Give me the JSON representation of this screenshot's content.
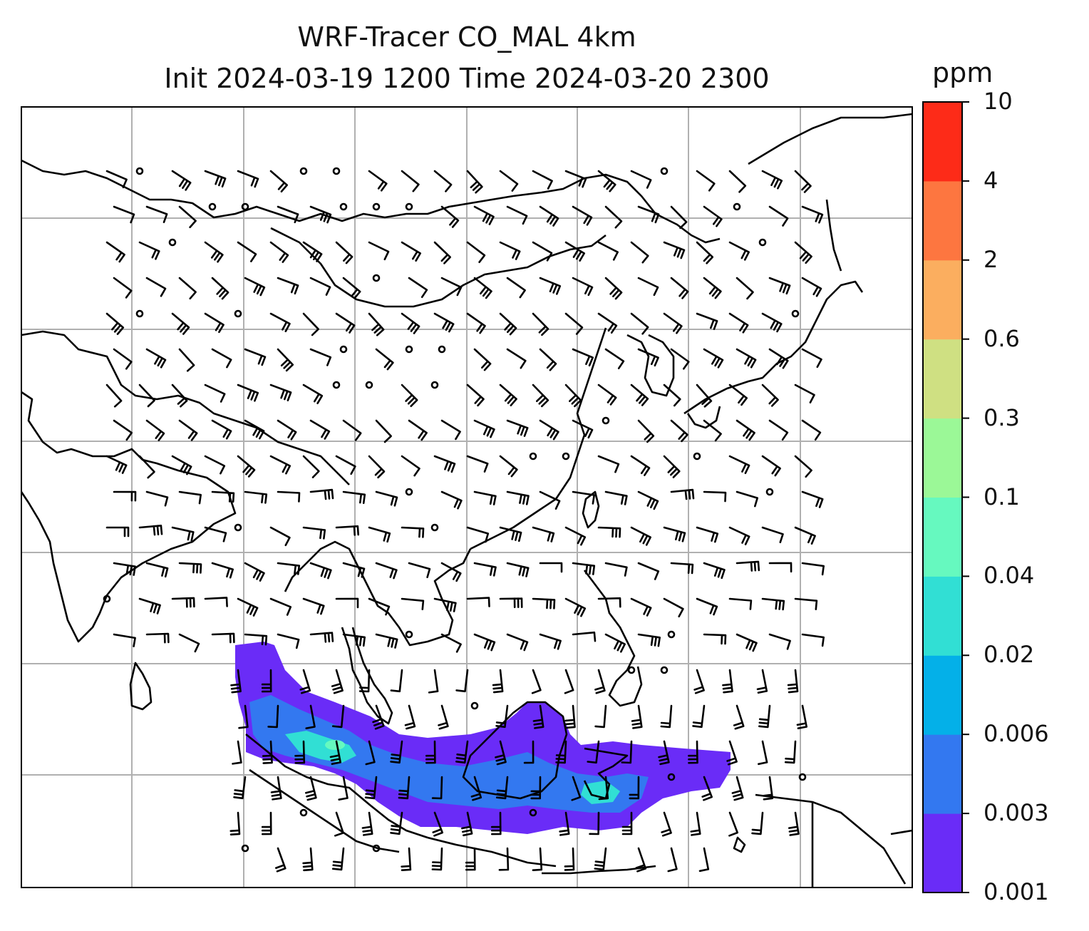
{
  "title": {
    "line1": "WRF-Tracer CO_MAL 4km",
    "line2": "Init 2024-03-19 1200 Time 2024-03-20 2300"
  },
  "colorbar": {
    "unit": "ppm",
    "levels": [
      "0.001",
      "0.003",
      "0.006",
      "0.02",
      "0.04",
      "0.1",
      "0.3",
      "0.6",
      "2",
      "4",
      "10"
    ],
    "colors": [
      "#6a2cf7",
      "#3378f0",
      "#04b0e8",
      "#31dfd4",
      "#66f9bf",
      "#9bf897",
      "#cfe082",
      "#fbae5f",
      "#fd7640",
      "#fd2b18"
    ]
  },
  "map": {
    "land_outline_color": "#000000",
    "gridline_color": "#b0b0b0",
    "plume_colors": {
      "outer": "#6a2cf7",
      "mid": "#3378f0",
      "inner": "#31dfd4",
      "core": "#66f9bf"
    }
  }
}
